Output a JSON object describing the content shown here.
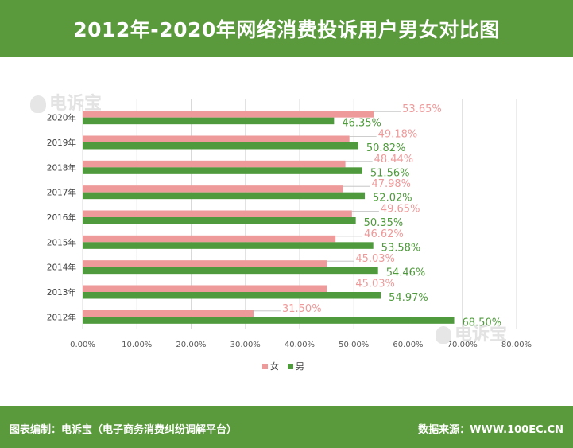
{
  "title": "2012年-2020年网络消费投诉用户男女对比图",
  "watermark": "电诉宝",
  "footer": {
    "left": "图表编制：电诉宝（电子商务消费纠纷调解平台）",
    "right": "数据来源：WWW.100EC.CN"
  },
  "colors": {
    "female": "#ee9a9a",
    "male": "#4f9a3c",
    "female_label": "#ee9a9a",
    "male_label": "#4f9a3c",
    "header": "#5a9a3c"
  },
  "chart_data": {
    "type": "bar",
    "orientation": "horizontal",
    "categories": [
      "2020年",
      "2019年",
      "2018年",
      "2017年",
      "2016年",
      "2015年",
      "2014年",
      "2013年",
      "2012年"
    ],
    "series": [
      {
        "name": "女",
        "values": [
          53.65,
          49.18,
          48.44,
          47.98,
          49.65,
          46.62,
          45.03,
          45.03,
          31.5
        ],
        "labels": [
          "53.65%",
          "49.18%",
          "48.44%",
          "47.98%",
          "49.65%",
          "46.62%",
          "45.03%",
          "45.03%",
          "31.50%"
        ]
      },
      {
        "name": "男",
        "values": [
          46.35,
          50.82,
          51.56,
          52.02,
          50.35,
          53.58,
          54.46,
          54.97,
          68.5
        ],
        "labels": [
          "46.35%",
          "50.82%",
          "51.56%",
          "52.02%",
          "50.35%",
          "53.58%",
          "54.46%",
          "54.97%",
          "68.50%"
        ]
      }
    ],
    "x_ticks": [
      "0.00%",
      "10.00%",
      "20.00%",
      "30.00%",
      "40.00%",
      "50.00%",
      "60.00%",
      "70.00%",
      "80.00%"
    ],
    "xlim": [
      0,
      80
    ],
    "grid": true,
    "legend": "bottom"
  }
}
